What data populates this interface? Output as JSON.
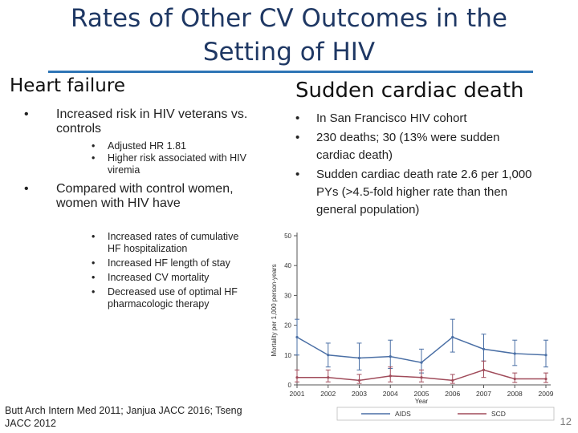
{
  "slide": {
    "title_line1": "Rates of Other CV Outcomes in the",
    "title_line2": "Setting of HIV",
    "page_number": "12",
    "reference": "Butt Arch Intern Med 2011; Janjua JACC 2016; Tseng JACC 2012"
  },
  "left": {
    "heading": "Heart failure",
    "bullet1": "Increased risk in HIV veterans vs. controls",
    "bullet1_sub": [
      "Adjusted HR 1.81",
      "Higher risk associated with HIV viremia"
    ],
    "bullet2": "Compared with control women, women with HIV have",
    "bullet2_sub": [
      "Increased rates of cumulative HF hospitalization",
      "Increased HF length of stay",
      "Increased CV mortality",
      "Decreased use of optimal HF pharmacologic therapy"
    ]
  },
  "right": {
    "heading": "Sudden cardiac death",
    "bullets": [
      "In San Francisco HIV cohort",
      "230 deaths; 30 (13% were sudden cardiac death)",
      "Sudden cardiac death rate 2.6 per 1,000 PYs (>4.5-fold higher rate than then general population)"
    ]
  },
  "chart_data": {
    "type": "line",
    "x": [
      2001,
      2002,
      2003,
      2004,
      2005,
      2006,
      2007,
      2008,
      2009
    ],
    "x_tick_labels": [
      "2001",
      "2002",
      "2003",
      "2004",
      "2005",
      "2006",
      "2007",
      "2008",
      "2009"
    ],
    "xlabel": "Year",
    "ylabel": "Mortality per 1,000 person-years",
    "ylim": [
      0,
      50
    ],
    "y_ticks": [
      "0",
      "10",
      "20",
      "30",
      "40",
      "50"
    ],
    "error_bars": true,
    "legend_position": "bottom",
    "series": [
      {
        "name": "AIDS",
        "color": "#4a6fa5",
        "values": [
          16,
          10,
          9,
          9.5,
          7.5,
          16,
          12,
          10.5,
          10
        ],
        "ci_low": [
          10,
          6,
          5,
          5.5,
          4,
          11,
          8,
          6.5,
          6
        ],
        "ci_high": [
          22,
          14,
          14,
          15,
          12,
          22,
          17,
          15,
          15
        ]
      },
      {
        "name": "SCD",
        "color": "#a04b5a",
        "values": [
          2.5,
          2.5,
          1.5,
          3,
          2.5,
          1.5,
          5,
          2,
          2
        ],
        "ci_low": [
          1,
          1,
          0.5,
          1,
          1,
          0.5,
          2.5,
          0.8,
          0.8
        ],
        "ci_high": [
          5,
          5,
          3.5,
          6,
          5,
          3.5,
          8,
          4,
          4
        ]
      }
    ]
  }
}
